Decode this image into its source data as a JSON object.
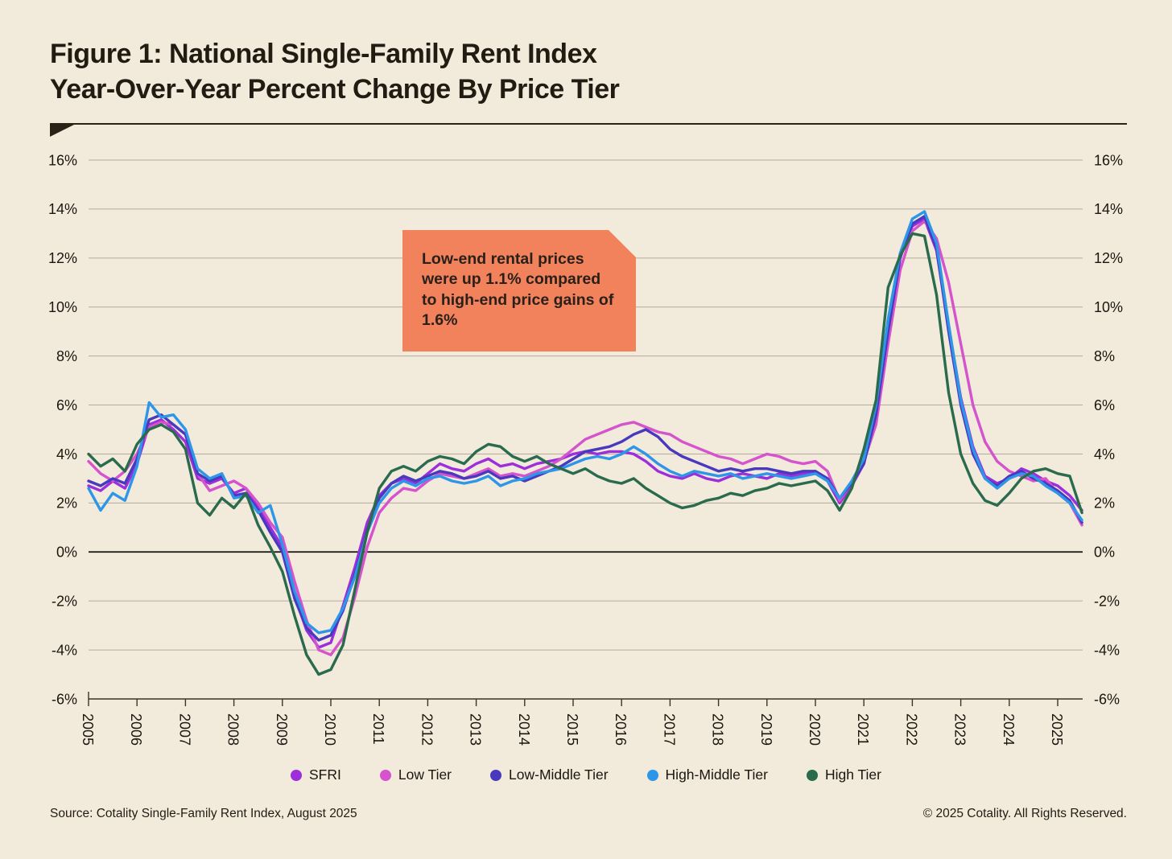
{
  "title": {
    "line1": "Figure 1: National Single-Family Rent Index",
    "line2": "Year-Over-Year Percent Change By Price Tier"
  },
  "annotation": {
    "text": "Low-end rental prices were up 1.1% compared to high-end price gains of 1.6%",
    "background": "#F2825C"
  },
  "footer": {
    "source": "Source: Cotality Single-Family Rent Index, August 2025",
    "copyright": "© 2025 Cotality. All Rights Reserved."
  },
  "colors": {
    "background": "#F2EBDC",
    "grid": "#b5ab9c",
    "zero_line": "#14100b",
    "axis": "#3a332a",
    "text": "#1c150e"
  },
  "chart_data": {
    "type": "line",
    "title": "National Single-Family Rent Index Year-Over-Year Percent Change By Price Tier",
    "xlabel": "",
    "ylabel": "Year-over-year percent change",
    "ylim": [
      -6,
      16
    ],
    "grid": "horizontal",
    "legend_position": "bottom",
    "y_ticks": [
      16,
      14,
      12,
      10,
      8,
      6,
      4,
      2,
      0,
      -2,
      -4,
      -6
    ],
    "y_tick_suffix": "%",
    "x_start": 2005,
    "x_step": 0.25,
    "x_tick_labels": [
      "2005",
      "2006",
      "2007",
      "2008",
      "2009",
      "2010",
      "2011",
      "2012",
      "2013",
      "2014",
      "2015",
      "2016",
      "2017",
      "2018",
      "2019",
      "2020",
      "2021",
      "2022",
      "2023",
      "2024",
      "2025"
    ],
    "series": [
      {
        "name": "SFRI",
        "color": "#9C2FD9",
        "values": [
          2.7,
          2.5,
          2.9,
          2.6,
          3.6,
          5.2,
          5.4,
          5.0,
          4.5,
          3.0,
          2.8,
          3.0,
          2.4,
          2.6,
          1.8,
          1.0,
          0.2,
          -1.8,
          -3.2,
          -3.9,
          -3.7,
          -2.2,
          -0.6,
          1.2,
          2.3,
          2.8,
          3.0,
          2.8,
          3.2,
          3.6,
          3.4,
          3.3,
          3.6,
          3.8,
          3.5,
          3.6,
          3.4,
          3.6,
          3.7,
          3.8,
          4.0,
          4.1,
          4.0,
          4.1,
          4.1,
          4.0,
          3.7,
          3.3,
          3.1,
          3.0,
          3.2,
          3.0,
          2.9,
          3.1,
          3.2,
          3.1,
          3.0,
          3.2,
          3.1,
          3.2,
          3.3,
          2.9,
          2.0,
          2.7,
          3.6,
          5.8,
          9.2,
          12.1,
          13.3,
          13.6,
          12.3,
          9.2,
          6.3,
          4.3,
          3.1,
          2.8,
          3.0,
          3.4,
          3.2,
          2.9,
          2.7,
          2.3,
          1.7
        ]
      },
      {
        "name": "Low Tier",
        "color": "#D553CD",
        "values": [
          3.7,
          3.2,
          2.9,
          3.3,
          4.0,
          5.1,
          5.3,
          5.2,
          4.8,
          3.2,
          2.5,
          2.7,
          2.9,
          2.6,
          2.0,
          1.2,
          0.6,
          -1.2,
          -2.8,
          -4.0,
          -4.2,
          -3.5,
          -1.8,
          0.2,
          1.6,
          2.2,
          2.6,
          2.5,
          2.9,
          3.2,
          3.1,
          3.0,
          3.2,
          3.4,
          3.1,
          3.2,
          3.1,
          3.3,
          3.5,
          3.8,
          4.2,
          4.6,
          4.8,
          5.0,
          5.2,
          5.3,
          5.1,
          4.9,
          4.8,
          4.5,
          4.3,
          4.1,
          3.9,
          3.8,
          3.6,
          3.8,
          4.0,
          3.9,
          3.7,
          3.6,
          3.7,
          3.3,
          2.1,
          2.8,
          3.7,
          5.2,
          8.5,
          11.5,
          13.1,
          13.5,
          12.8,
          11.0,
          8.5,
          6.0,
          4.5,
          3.7,
          3.3,
          3.1,
          2.9,
          3.0,
          2.4,
          2.0,
          1.1
        ]
      },
      {
        "name": "Low-Middle Tier",
        "color": "#4939BE",
        "values": [
          2.9,
          2.7,
          3.0,
          2.8,
          3.8,
          5.4,
          5.6,
          5.2,
          4.8,
          3.2,
          2.9,
          3.1,
          2.3,
          2.4,
          1.7,
          0.8,
          0.0,
          -1.9,
          -3.1,
          -3.6,
          -3.4,
          -2.4,
          -0.9,
          0.9,
          2.2,
          2.8,
          3.1,
          2.9,
          3.1,
          3.3,
          3.2,
          3.0,
          3.1,
          3.3,
          3.0,
          3.1,
          2.9,
          3.1,
          3.3,
          3.5,
          3.8,
          4.1,
          4.2,
          4.3,
          4.5,
          4.8,
          5.0,
          4.7,
          4.2,
          3.9,
          3.7,
          3.5,
          3.3,
          3.4,
          3.3,
          3.4,
          3.4,
          3.3,
          3.2,
          3.3,
          3.3,
          3.0,
          2.2,
          2.8,
          3.6,
          5.6,
          9.0,
          12.0,
          13.4,
          13.7,
          12.4,
          9.0,
          6.0,
          4.0,
          3.0,
          2.7,
          3.1,
          3.3,
          3.0,
          2.8,
          2.5,
          2.1,
          1.2
        ]
      },
      {
        "name": "High-Middle Tier",
        "color": "#2E96E8",
        "values": [
          2.6,
          1.7,
          2.4,
          2.1,
          3.5,
          6.1,
          5.5,
          5.6,
          5.0,
          3.4,
          3.0,
          3.2,
          2.2,
          2.3,
          1.6,
          1.9,
          0.3,
          -1.6,
          -2.9,
          -3.3,
          -3.2,
          -2.3,
          -1.0,
          0.8,
          2.0,
          2.6,
          2.9,
          2.7,
          3.0,
          3.1,
          2.9,
          2.8,
          2.9,
          3.1,
          2.7,
          2.9,
          3.0,
          3.2,
          3.3,
          3.4,
          3.6,
          3.8,
          3.9,
          3.8,
          4.0,
          4.3,
          4.0,
          3.6,
          3.3,
          3.1,
          3.3,
          3.2,
          3.1,
          3.2,
          3.0,
          3.1,
          3.2,
          3.1,
          3.0,
          3.1,
          3.2,
          2.9,
          2.2,
          2.9,
          3.8,
          6.0,
          9.5,
          12.2,
          13.6,
          13.9,
          12.6,
          9.3,
          6.2,
          4.2,
          3.0,
          2.6,
          3.0,
          3.2,
          3.1,
          2.7,
          2.4,
          2.0,
          1.3
        ]
      },
      {
        "name": "High Tier",
        "color": "#2A6B4D",
        "values": [
          4.0,
          3.5,
          3.8,
          3.3,
          4.4,
          5.0,
          5.2,
          4.9,
          4.2,
          2.0,
          1.5,
          2.2,
          1.8,
          2.4,
          1.1,
          0.2,
          -0.8,
          -2.6,
          -4.2,
          -5.0,
          -4.8,
          -3.8,
          -1.5,
          0.8,
          2.6,
          3.3,
          3.5,
          3.3,
          3.7,
          3.9,
          3.8,
          3.6,
          4.1,
          4.4,
          4.3,
          3.9,
          3.7,
          3.9,
          3.6,
          3.4,
          3.2,
          3.4,
          3.1,
          2.9,
          2.8,
          3.0,
          2.6,
          2.3,
          2.0,
          1.8,
          1.9,
          2.1,
          2.2,
          2.4,
          2.3,
          2.5,
          2.6,
          2.8,
          2.7,
          2.8,
          2.9,
          2.5,
          1.7,
          2.6,
          4.2,
          6.2,
          10.8,
          12.1,
          13.0,
          12.9,
          10.5,
          6.5,
          4.0,
          2.8,
          2.1,
          1.9,
          2.4,
          3.0,
          3.3,
          3.4,
          3.2,
          3.1,
          1.6
        ]
      }
    ]
  }
}
